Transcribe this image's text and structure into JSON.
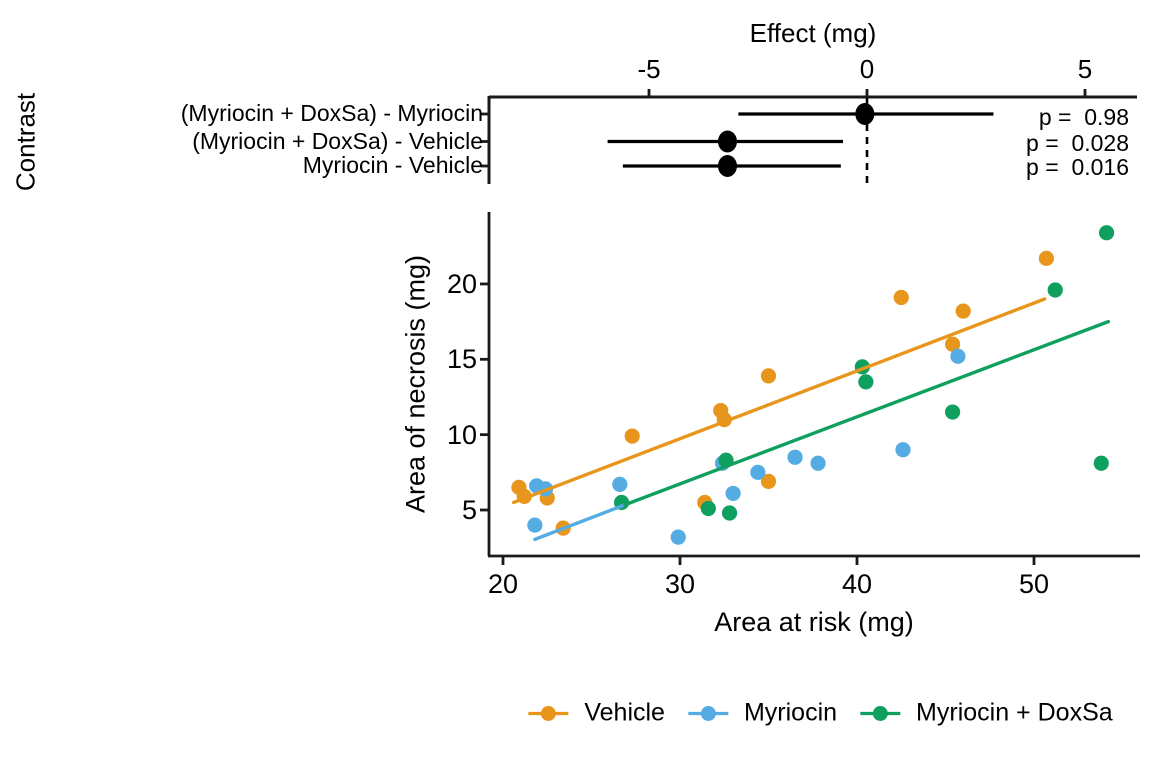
{
  "ink_color": "#1A1A1A",
  "chart_data": [
    {
      "id": "contrast-forest-plot",
      "type": "pointrange",
      "x_axis": {
        "label": "Effect (mg)",
        "range": [
          -8.7,
          6.2
        ],
        "ticks": [
          {
            "value": -5,
            "label": "-5"
          },
          {
            "value": 0,
            "label": "0"
          },
          {
            "value": 5,
            "label": "5"
          }
        ]
      },
      "y_axis_label": "Contrast",
      "zero_line": {
        "value": 0,
        "style": "dashed"
      },
      "rows": [
        {
          "label": "(Myriocin + DoxSa) - Myriocin",
          "effect": -0.05,
          "ci": [
            -2.95,
            2.9
          ],
          "p_value": 0.98,
          "p_label": "p =  0.98"
        },
        {
          "label": "(Myriocin + DoxSa) - Vehicle",
          "effect": -3.2,
          "ci": [
            -5.95,
            -0.55
          ],
          "p_value": 0.028,
          "p_label": "p =  0.028"
        },
        {
          "label": "Myriocin - Vehicle",
          "effect": -3.2,
          "ci": [
            -5.6,
            -0.6
          ],
          "p_value": 0.016,
          "p_label": "p =  0.016"
        }
      ],
      "point_color": "#000000"
    },
    {
      "id": "necrosis-scatter-plot",
      "type": "scatter",
      "x_axis": {
        "label": "Area at risk (mg)",
        "range": [
          19.2,
          56.0
        ],
        "ticks": [
          {
            "value": 20,
            "label": "20"
          },
          {
            "value": 30,
            "label": "30"
          },
          {
            "value": 40,
            "label": "40"
          },
          {
            "value": 50,
            "label": "50"
          }
        ]
      },
      "y_axis": {
        "label": "Area of necrosis (mg)",
        "range": [
          1.9,
          24.8
        ],
        "ticks": [
          {
            "value": 5,
            "label": "5"
          },
          {
            "value": 10,
            "label": "10"
          },
          {
            "value": 15,
            "label": "15"
          },
          {
            "value": 20,
            "label": "20"
          }
        ]
      },
      "series": [
        {
          "name": "Vehicle",
          "color": "#E8951C",
          "points": [
            [
              20.9,
              6.5
            ],
            [
              21.2,
              5.9
            ],
            [
              22.5,
              5.8
            ],
            [
              23.4,
              3.8
            ],
            [
              27.3,
              9.9
            ],
            [
              31.4,
              5.5
            ],
            [
              32.3,
              11.6
            ],
            [
              32.5,
              11.0
            ],
            [
              35.0,
              13.9
            ],
            [
              35.0,
              6.9
            ],
            [
              42.5,
              19.1
            ],
            [
              45.4,
              16.0
            ],
            [
              46.0,
              18.2
            ],
            [
              50.7,
              21.7
            ]
          ],
          "trend_line": {
            "x1": 20.6,
            "y1": 5.5,
            "x2": 50.6,
            "y2": 19.0
          }
        },
        {
          "name": "Myriocin",
          "color": "#55ACE3",
          "points": [
            [
              21.8,
              4.0
            ],
            [
              21.9,
              6.6
            ],
            [
              22.4,
              6.4
            ],
            [
              26.6,
              6.7
            ],
            [
              29.9,
              3.2
            ],
            [
              32.4,
              8.1
            ],
            [
              33.0,
              6.1
            ],
            [
              34.4,
              7.5
            ],
            [
              36.5,
              8.5
            ],
            [
              37.8,
              8.1
            ],
            [
              42.6,
              9.0
            ],
            [
              45.7,
              15.2
            ]
          ],
          "trend_line": {
            "x1": 21.8,
            "y1": 3.05,
            "x2": 26.9,
            "y2": 5.35
          }
        },
        {
          "name": "Myriocin + DoxSa",
          "color": "#0FA05F",
          "points": [
            [
              26.7,
              5.5
            ],
            [
              31.6,
              5.1
            ],
            [
              32.6,
              8.3
            ],
            [
              32.8,
              4.8
            ],
            [
              40.3,
              14.5
            ],
            [
              40.5,
              13.5
            ],
            [
              45.4,
              11.5
            ],
            [
              51.2,
              19.6
            ],
            [
              53.8,
              8.1
            ],
            [
              54.1,
              23.4
            ]
          ],
          "trend_line": {
            "x1": 26.9,
            "y1": 5.35,
            "x2": 54.2,
            "y2": 17.5
          }
        }
      ]
    }
  ],
  "legend": {
    "items": [
      {
        "label": "Vehicle"
      },
      {
        "label": "Myriocin"
      },
      {
        "label": "Myriocin + DoxSa"
      }
    ]
  }
}
